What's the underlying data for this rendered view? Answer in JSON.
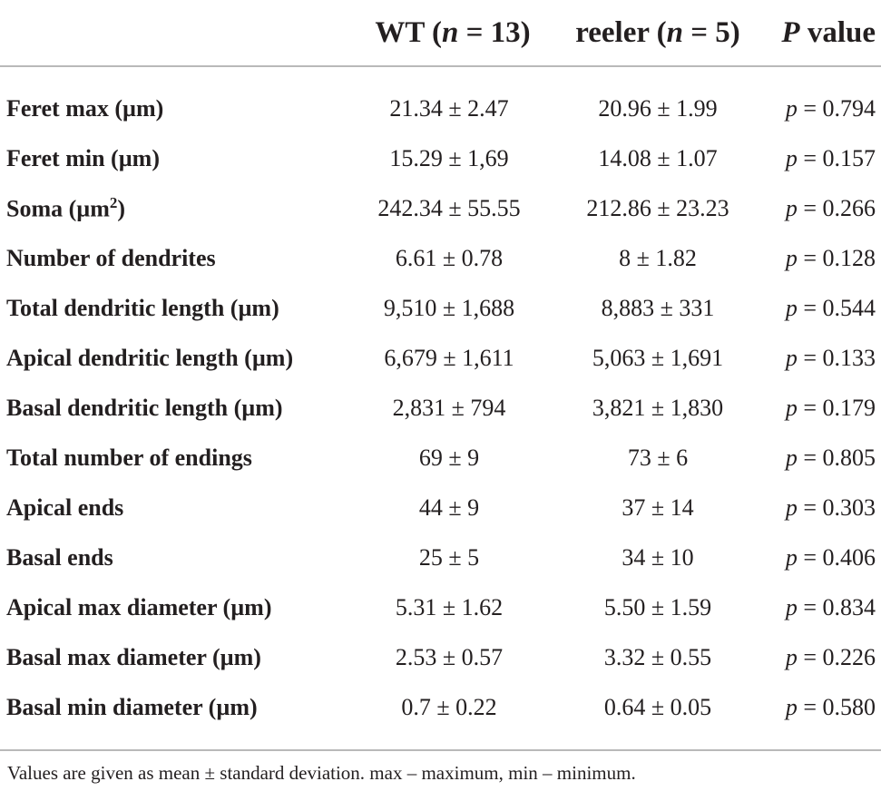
{
  "table": {
    "headers": {
      "col1_prefix": "WT (",
      "col1_n": "n",
      "col1_suffix": " = 13)",
      "col2_prefix": "reeler (",
      "col2_n": "n",
      "col2_suffix": " = 5)",
      "col3_p": "P",
      "col3_suffix": " value"
    },
    "rows": [
      {
        "label": "Feret max (µm)",
        "wt": "21.34 ± 2.47",
        "reeler": "20.96 ± 1.99",
        "p": "p",
        "pval": " = 0.794"
      },
      {
        "label": "Feret min (µm)",
        "wt": "15.29 ± 1,69",
        "reeler": "14.08 ± 1.07",
        "p": "p",
        "pval": " = 0.157"
      },
      {
        "label": "Soma (µm",
        "label_sup": "2",
        "label_end": ")",
        "wt": "242.34 ± 55.55",
        "reeler": "212.86 ± 23.23",
        "p": "p",
        "pval": " = 0.266"
      },
      {
        "label": "Number of dendrites",
        "wt": "6.61 ± 0.78",
        "reeler": "8 ± 1.82",
        "p": "p",
        "pval": " = 0.128"
      },
      {
        "label": "Total dendritic length (µm)",
        "wt": "9,510 ± 1,688",
        "reeler": "8,883 ± 331",
        "p": "p",
        "pval": " = 0.544"
      },
      {
        "label": "Apical dendritic length (µm)",
        "wt": "6,679 ± 1,611",
        "reeler": "5,063 ± 1,691",
        "p": "p",
        "pval": " = 0.133"
      },
      {
        "label": "Basal dendritic length (µm)",
        "wt": "2,831 ± 794",
        "reeler": "3,821 ± 1,830",
        "p": "p",
        "pval": " = 0.179"
      },
      {
        "label": "Total number of endings",
        "wt": "69 ± 9",
        "reeler": "73 ± 6",
        "p": "p",
        "pval": " = 0.805"
      },
      {
        "label": "Apical ends",
        "wt": "44 ± 9",
        "reeler": "37 ± 14",
        "p": "p",
        "pval": " = 0.303"
      },
      {
        "label": "Basal ends",
        "wt": "25 ± 5",
        "reeler": "34 ± 10",
        "p": "p",
        "pval": " = 0.406"
      },
      {
        "label": "Apical max diameter (µm)",
        "wt": "5.31 ± 1.62",
        "reeler": "5.50 ± 1.59",
        "p": "p",
        "pval": " = 0.834"
      },
      {
        "label": "Basal max diameter (µm)",
        "wt": "2.53 ± 0.57",
        "reeler": "3.32 ± 0.55",
        "p": "p",
        "pval": " = 0.226"
      },
      {
        "label": "Basal min diameter (µm)",
        "wt": "0.7 ± 0.22",
        "reeler": "0.64 ± 0.05",
        "p": "p",
        "pval": " = 0.580"
      }
    ],
    "footnote": "Values are given as mean ± standard deviation. max – maximum, min – minimum.",
    "rule_color": "#b9b9b9",
    "text_color": "#231f20"
  }
}
